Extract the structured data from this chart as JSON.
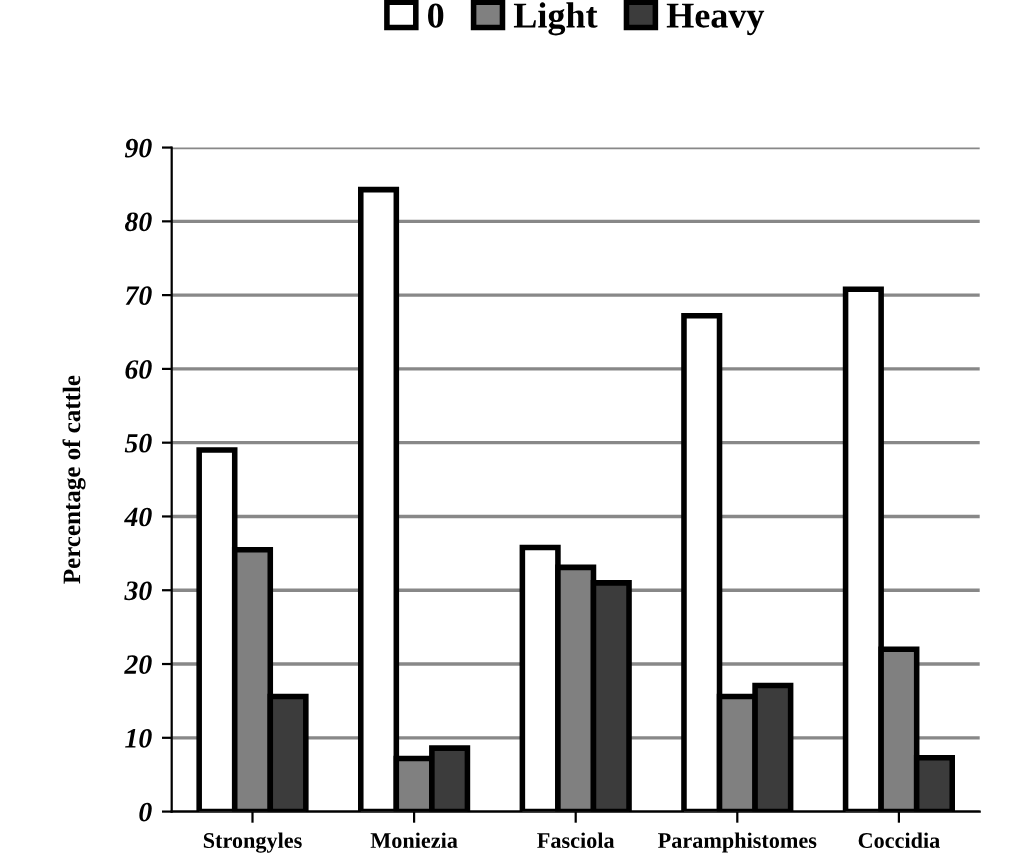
{
  "chart_data": {
    "type": "bar",
    "ylabel": "Percentage of cattle",
    "categories": [
      "Strongyles",
      "Moniezia",
      "Fasciola",
      "Paramphistomes",
      "Coccidia"
    ],
    "series": [
      {
        "name": "0",
        "color": "#ffffff",
        "values": [
          49,
          84.3,
          35.8,
          67.2,
          70.8
        ]
      },
      {
        "name": "Light",
        "color": "#808080",
        "values": [
          35.5,
          7.2,
          33.1,
          15.6,
          22
        ]
      },
      {
        "name": "Heavy",
        "color": "#3c3c3c",
        "values": [
          15.6,
          8.6,
          31,
          17.1,
          7.3
        ]
      }
    ],
    "ylim": [
      0,
      90
    ],
    "yticks": [
      0,
      10,
      20,
      30,
      40,
      50,
      60,
      70,
      80,
      90
    ],
    "grid": "y",
    "legend": "top"
  }
}
